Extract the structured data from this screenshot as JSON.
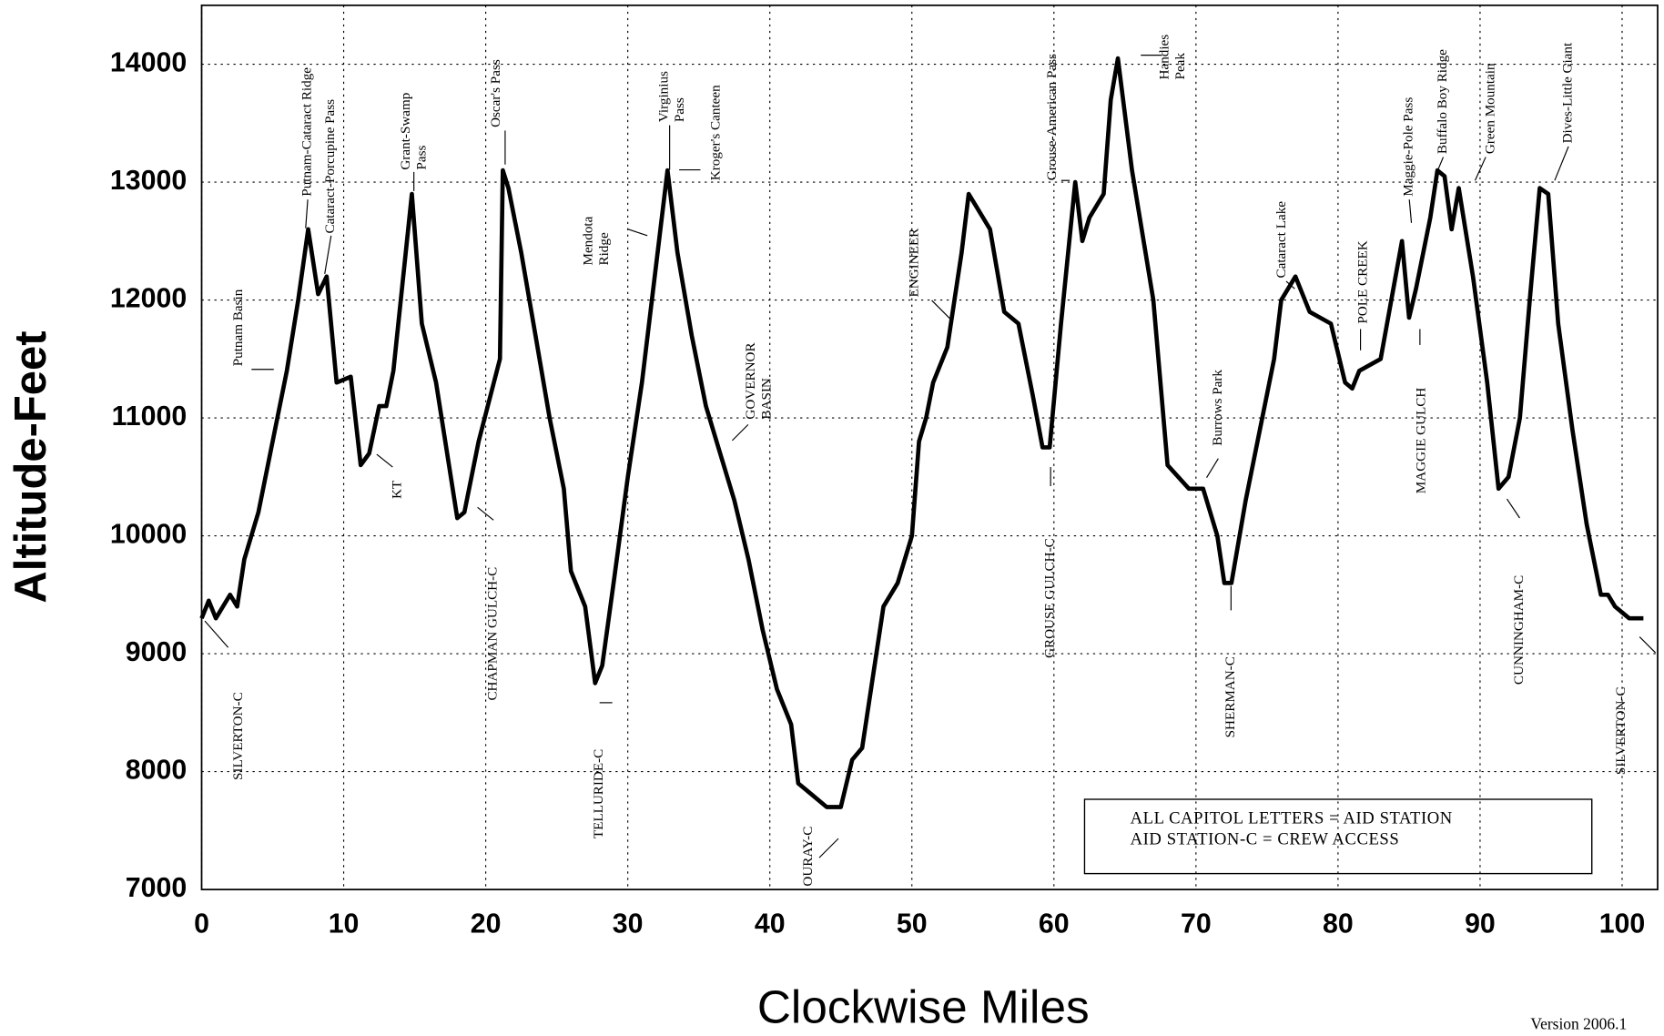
{
  "chart_data": {
    "type": "line",
    "ylabel": "Altitude-Feet",
    "xlabel": "Clockwise Miles",
    "color": "#000000",
    "grid": true,
    "xlim": [
      0,
      102.5
    ],
    "ylim": [
      7000,
      14500
    ],
    "xticks": [
      0,
      10,
      20,
      30,
      40,
      50,
      60,
      70,
      80,
      90,
      100
    ],
    "yticks": [
      7000,
      8000,
      9000,
      10000,
      11000,
      12000,
      13000,
      14000
    ],
    "x": [
      0,
      0.5,
      1,
      2,
      2.5,
      3,
      4,
      5,
      6,
      6.8,
      7.5,
      8.2,
      8.8,
      9.5,
      10.5,
      11.2,
      11.8,
      12.5,
      13,
      13.5,
      14.8,
      15.5,
      16.5,
      18,
      18.5,
      19.5,
      21,
      21.2,
      21.6,
      22.5,
      23.5,
      24.5,
      25.5,
      26,
      27,
      27.7,
      28.2,
      29,
      30,
      31,
      32,
      32.8,
      33.5,
      34.5,
      35.5,
      36.5,
      37.5,
      38.5,
      39.5,
      40.5,
      41.5,
      42,
      43,
      44,
      45,
      45.8,
      46.5,
      47.5,
      48,
      49,
      50,
      50.5,
      51,
      51.5,
      52.5,
      53.5,
      54,
      54.5,
      55.5,
      56.5,
      57.5,
      58.5,
      59.2,
      59.7,
      60.5,
      61.5,
      62,
      62.5,
      63.5,
      64,
      64.5,
      65.5,
      67,
      68,
      69.5,
      70.5,
      71.5,
      72,
      72.5,
      73.5,
      74.5,
      75.5,
      76,
      76.5,
      77,
      78,
      79.5,
      80.5,
      81,
      81.5,
      83,
      84.5,
      85,
      85.5,
      86.5,
      87,
      87.5,
      88,
      88.5,
      89.5,
      90.5,
      91.3,
      92,
      92.8,
      93.5,
      94.2,
      94.8,
      95.5,
      96.5,
      97.5,
      98.5,
      99,
      99.5,
      100.5,
      101.5
    ],
    "values": [
      9300,
      9450,
      9300,
      9500,
      9400,
      9800,
      10200,
      10800,
      11400,
      12000,
      12600,
      12050,
      12200,
      11300,
      11350,
      10600,
      10700,
      11100,
      11100,
      11400,
      12900,
      11800,
      11300,
      10150,
      10200,
      10800,
      11500,
      13100,
      12950,
      12400,
      11700,
      11000,
      10400,
      9700,
      9400,
      8750,
      8900,
      9600,
      10500,
      11300,
      12300,
      13100,
      12400,
      11700,
      11100,
      10700,
      10300,
      9800,
      9200,
      8700,
      8400,
      7900,
      7800,
      7700,
      7700,
      8100,
      8200,
      9000,
      9400,
      9600,
      10000,
      10800,
      11000,
      11300,
      11600,
      12400,
      12900,
      12800,
      12600,
      11900,
      11800,
      11200,
      10750,
      10750,
      11800,
      13000,
      12500,
      12700,
      12900,
      13700,
      14050,
      13100,
      12000,
      10600,
      10400,
      10400,
      10000,
      9600,
      9600,
      10300,
      10900,
      11500,
      12000,
      12100,
      12200,
      11900,
      11800,
      11300,
      11250,
      11400,
      11500,
      12500,
      11850,
      12100,
      12700,
      13100,
      13050,
      12600,
      12950,
      12200,
      11300,
      10400,
      10500,
      11000,
      12000,
      12950,
      12900,
      11800,
      10900,
      10100,
      9500,
      9500,
      9400,
      9300,
      9300
    ],
    "annotations": [
      {
        "lines": [
          "SILVERTON-C"
        ]
      },
      {
        "lines": [
          "Putnam Basin"
        ]
      },
      {
        "lines": [
          "Putnam-Cataract Ridge"
        ]
      },
      {
        "lines": [
          "Cataract-Porcupine Pass"
        ]
      },
      {
        "lines": [
          "KT"
        ]
      },
      {
        "lines": [
          "Grant-Swamp",
          "Pass"
        ]
      },
      {
        "lines": [
          "CHAPMAN GULCH-C"
        ]
      },
      {
        "lines": [
          "Oscar's Pass"
        ]
      },
      {
        "lines": [
          "TELLURIDE-C"
        ]
      },
      {
        "lines": [
          "Mendota",
          "Ridge"
        ]
      },
      {
        "lines": [
          "Virginius",
          "Pass"
        ]
      },
      {
        "lines": [
          "Kroger's Canteen"
        ]
      },
      {
        "lines": [
          "GOVERNOR",
          "BASIN"
        ]
      },
      {
        "lines": [
          "OURAY-C"
        ]
      },
      {
        "lines": [
          "ENGINEER"
        ]
      },
      {
        "lines": [
          "GROUSE GULCH-C"
        ]
      },
      {
        "lines": [
          "Grouse-American Pass"
        ]
      },
      {
        "lines": [
          "Handies",
          "Peak"
        ]
      },
      {
        "lines": [
          "Burrows Park"
        ]
      },
      {
        "lines": [
          "SHERMAN-C"
        ]
      },
      {
        "lines": [
          "Cataract Lake"
        ]
      },
      {
        "lines": [
          "POLE CREEK"
        ]
      },
      {
        "lines": [
          "Maggie-Pole Pass"
        ]
      },
      {
        "lines": [
          "MAGGIE GULCH"
        ]
      },
      {
        "lines": [
          "Buffalo Boy Ridge"
        ]
      },
      {
        "lines": [
          "Green Mountain"
        ]
      },
      {
        "lines": [
          "CUNNINGHAM-C"
        ]
      },
      {
        "lines": [
          "Dives-Little Giant"
        ]
      },
      {
        "lines": [
          "SILVERTON-C"
        ]
      }
    ],
    "legend_lines": [
      "ALL CAPITOL  LETTERS = AID STATION",
      "AID STATION-C = CREW ACCESS"
    ],
    "version": "Version 2006.1"
  }
}
